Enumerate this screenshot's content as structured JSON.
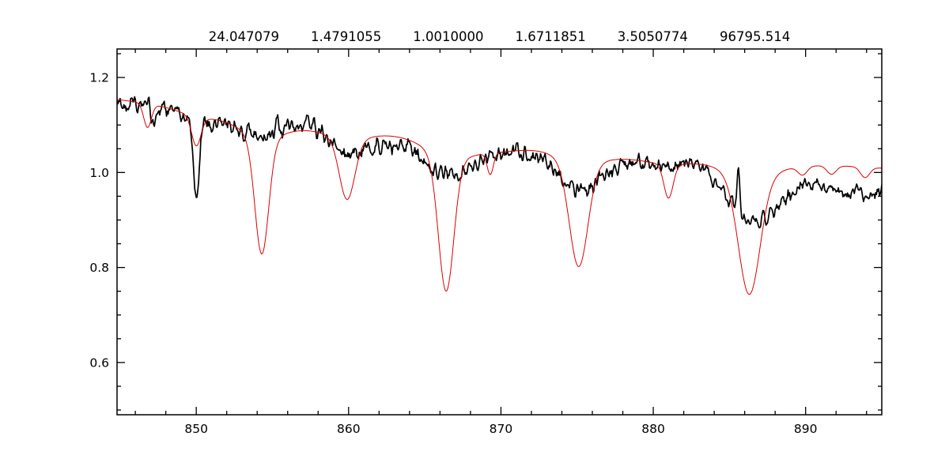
{
  "window": {
    "background": "#ffffff"
  },
  "chart_data": {
    "type": "line",
    "title": "24.047079   1.4791055   1.0010000   1.6711851   3.5050774   96795.514",
    "title_values": [
      "24.047079",
      "1.4791055",
      "1.0010000",
      "1.6711851",
      "3.5050774",
      "96795.514"
    ],
    "xlabel": "",
    "ylabel": "",
    "xlim": [
      844.8,
      895.0
    ],
    "ylim": [
      0.49,
      1.26
    ],
    "xticks": [
      850,
      860,
      870,
      880,
      890
    ],
    "yticks": [
      0.6,
      0.8,
      1.0,
      1.2
    ],
    "xtick_labels": [
      "850",
      "860",
      "870",
      "880",
      "890"
    ],
    "ytick_labels": [
      "0.6",
      "0.8",
      "1.0",
      "1.2"
    ],
    "x_minor_step": 2,
    "y_minor_step": 0.05,
    "grid": false,
    "legend": "none",
    "frame_color": "#000000",
    "series": [
      {
        "name": "observed-spectrum",
        "style": "noisy-line",
        "color": "#000000",
        "line_width": 1.7,
        "sample_step": 0.05,
        "noise_amplitude": 0.0085,
        "continuum": {
          "x0": 845,
          "y0": 1.148,
          "slope": -0.0031
        },
        "absorption_lines": [
          {
            "center": 847.2,
            "depth": 0.04,
            "width": 0.15
          },
          {
            "center": 850.0,
            "depth": 0.155,
            "width": 0.2
          },
          {
            "center": 850.5,
            "depth": 0.025,
            "width": 1.5
          },
          {
            "center": 854.3,
            "depth": 0.044,
            "width": 1.3
          },
          {
            "center": 859.9,
            "depth": 0.05,
            "width": 1.3
          },
          {
            "center": 862.5,
            "depth": 0.02,
            "width": 2.0
          },
          {
            "center": 866.4,
            "depth": 0.055,
            "width": 1.5
          },
          {
            "center": 868.5,
            "depth": 0.035,
            "width": 3.0
          },
          {
            "center": 875.1,
            "depth": 0.085,
            "width": 1.4
          },
          {
            "center": 879.0,
            "depth": 0.02,
            "width": 2.5
          },
          {
            "center": 881.0,
            "depth": 0.02,
            "width": 0.3
          },
          {
            "center": 886.5,
            "depth": 0.12,
            "width": 1.7
          },
          {
            "center": 893.0,
            "depth": 0.045,
            "width": 3.0
          }
        ],
        "emission_spikes": [
          {
            "center": 855.35,
            "height": 0.045,
            "width": 0.09
          },
          {
            "center": 885.6,
            "height": 0.095,
            "width": 0.09
          }
        ]
      },
      {
        "name": "model-spectrum",
        "style": "smooth-line",
        "color": "#dd0000",
        "line_width": 1.0,
        "sample_step": 0.06,
        "noise_amplitude": 0,
        "continuum": {
          "x0": 845,
          "y0": 1.158,
          "slope": -0.0029
        },
        "absorption_lines": [
          {
            "center": 846.8,
            "depth": 0.05,
            "width": 0.25
          },
          {
            "center": 850.0,
            "depth": 0.06,
            "width": 0.3,
            "wing_depth": 0.015,
            "wing_width": 1.5
          },
          {
            "center": 854.3,
            "depth": 0.24,
            "width": 0.45,
            "wing_depth": 0.055,
            "wing_width": 2.0
          },
          {
            "center": 859.9,
            "depth": 0.123,
            "width": 0.5,
            "wing_depth": 0.036,
            "wing_width": 2.0
          },
          {
            "center": 866.4,
            "depth": 0.275,
            "width": 0.5,
            "wing_depth": 0.057,
            "wing_width": 2.0
          },
          {
            "center": 869.3,
            "depth": 0.045,
            "width": 0.2
          },
          {
            "center": 869.5,
            "depth": 0.02,
            "width": 2.0
          },
          {
            "center": 875.1,
            "depth": 0.21,
            "width": 0.6,
            "wing_depth": 0.05,
            "wing_width": 2.0
          },
          {
            "center": 880.0,
            "depth": 0.015,
            "width": 2.5
          },
          {
            "center": 881.0,
            "depth": 0.07,
            "width": 0.3,
            "wing_depth": 0.01,
            "wing_width": 1.5
          },
          {
            "center": 886.3,
            "depth": 0.235,
            "width": 0.7,
            "wing_depth": 0.056,
            "wing_width": 2.0
          },
          {
            "center": 889.8,
            "depth": 0.018,
            "width": 0.3
          },
          {
            "center": 891.7,
            "depth": 0.018,
            "width": 0.3
          },
          {
            "center": 893.9,
            "depth": 0.022,
            "width": 0.3
          }
        ],
        "emission_spikes": []
      }
    ]
  }
}
